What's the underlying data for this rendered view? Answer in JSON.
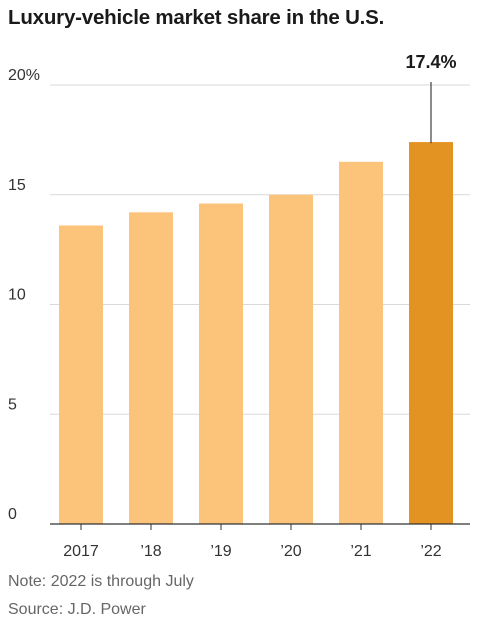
{
  "chart_data": {
    "type": "bar",
    "title": "Luxury-vehicle market share in the U.S.",
    "categories": [
      "2017",
      "’18",
      "’19",
      "’20",
      "’21",
      "’22"
    ],
    "values": [
      13.6,
      14.2,
      14.6,
      15.0,
      16.5,
      17.4
    ],
    "ylim": [
      0,
      20
    ],
    "y_ticks": [
      0,
      5,
      10,
      15,
      20
    ],
    "y_tick_labels": [
      "0",
      "5",
      "10",
      "15",
      "20%"
    ],
    "highlight_index": 5,
    "highlight_label": "17.4%",
    "bar_color": "#fcc37a",
    "highlight_color": "#e39322",
    "grid": true,
    "xlabel": "",
    "ylabel": ""
  },
  "footer": {
    "note": "Note: 2022 is through July",
    "source": "Source: J.D. Power"
  }
}
